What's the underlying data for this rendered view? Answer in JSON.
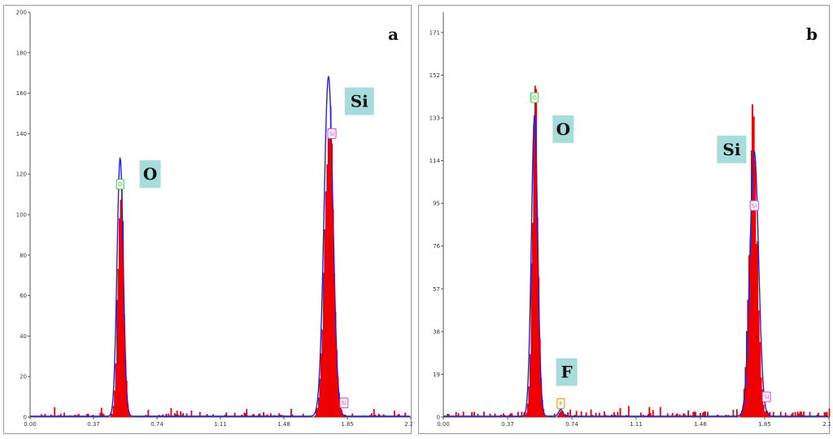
{
  "chart_data": [
    {
      "panel_letter": "a",
      "type": "bar+line",
      "xlim": [
        0,
        2.22
      ],
      "ylim": [
        0,
        200
      ],
      "x_ticks": [
        "0.00",
        "0.37",
        "0.74",
        "1.11",
        "1.48",
        "1.85",
        "2.22"
      ],
      "y_ticks": [
        "0",
        "20",
        "40",
        "60",
        "80",
        "100",
        "120",
        "140",
        "160",
        "180",
        "200"
      ],
      "spectrum_color": "#ee0000",
      "fit_color": "#2222dd",
      "peaks": [
        {
          "center": 0.525,
          "sigma": 0.017,
          "height": 118
        },
        {
          "center": 1.74,
          "sigma": 0.025,
          "height": 164
        }
      ],
      "fit_peaks": [
        {
          "center": 0.525,
          "sigma": 0.018,
          "height": 128
        },
        {
          "center": 1.74,
          "sigma": 0.026,
          "height": 168
        }
      ],
      "element_labels": [
        {
          "text": "O",
          "x": 0.7,
          "y": 120
        },
        {
          "text": "Si",
          "x": 1.92,
          "y": 156
        }
      ],
      "markers": [
        {
          "text": "O",
          "x": 0.525,
          "y": 115,
          "color": "#33cc33"
        },
        {
          "text": "Si",
          "x": 1.76,
          "y": 140,
          "color": "#cc44cc"
        },
        {
          "text": "Si",
          "x": 1.83,
          "y": 7,
          "color": "#cc44cc"
        }
      ]
    },
    {
      "panel_letter": "b",
      "type": "bar+line",
      "xlim": [
        0,
        2.22
      ],
      "ylim": [
        0,
        180
      ],
      "x_ticks": [
        "0.00",
        "0.37",
        "0.74",
        "1.11",
        "1.48",
        "1.85",
        "2.22"
      ],
      "y_ticks": [
        "0",
        "19",
        "38",
        "57",
        "76",
        "95",
        "114",
        "133",
        "152",
        "171"
      ],
      "spectrum_color": "#ee0000",
      "fit_color": "#2222dd",
      "peaks": [
        {
          "center": 0.525,
          "sigma": 0.017,
          "height": 136
        },
        {
          "center": 1.78,
          "sigma": 0.024,
          "height": 118
        },
        {
          "center": 0.676,
          "sigma": 0.012,
          "height": 3
        }
      ],
      "fit_peaks": [
        {
          "center": 0.525,
          "sigma": 0.018,
          "height": 134
        },
        {
          "center": 1.79,
          "sigma": 0.025,
          "height": 118
        },
        {
          "center": 0.676,
          "sigma": 0.012,
          "height": 3
        }
      ],
      "spike": {
        "x": 1.775,
        "y": 139
      },
      "element_labels": [
        {
          "text": "O",
          "x": 0.69,
          "y": 128
        },
        {
          "text": "Si",
          "x": 1.66,
          "y": 119
        },
        {
          "text": "F",
          "x": 0.71,
          "y": 20
        }
      ],
      "markers": [
        {
          "text": "O",
          "x": 0.525,
          "y": 142,
          "color": "#33cc33"
        },
        {
          "text": "Si",
          "x": 1.79,
          "y": 94,
          "color": "#cc44cc"
        },
        {
          "text": "F",
          "x": 0.676,
          "y": 6,
          "color": "#ee8800"
        },
        {
          "text": "Si",
          "x": 1.86,
          "y": 9,
          "color": "#cc44cc"
        }
      ]
    }
  ],
  "colors": {
    "label_bg": "#a8dcdc",
    "axis": "#555555"
  }
}
